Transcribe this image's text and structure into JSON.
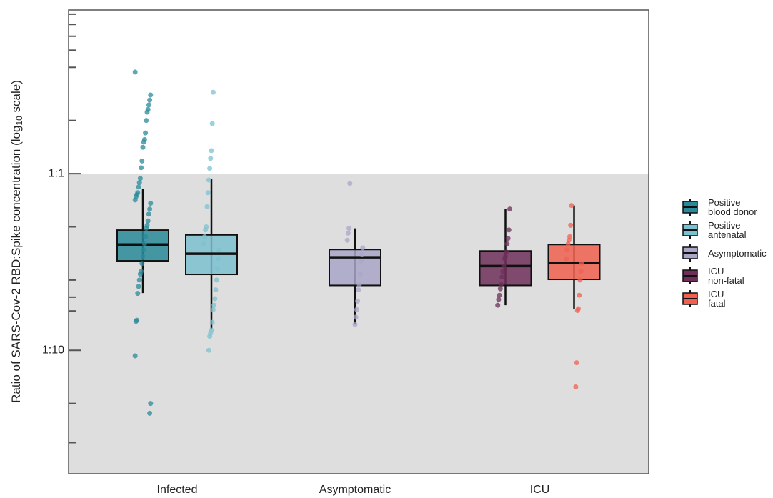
{
  "chart_data": {
    "type": "box",
    "ylabel": [
      "Ratio of SARS-Cov-2 RBD:Spike concentration (log",
      "10",
      " scale)"
    ],
    "categories": [
      "Infected",
      "Asymptomatic",
      "ICU"
    ],
    "log_scale": true,
    "ylim": [
      0.02,
      8.45
    ],
    "yticks": [
      {
        "value": 0.1,
        "label": "1:10"
      },
      {
        "value": 1,
        "label": "1:1"
      }
    ],
    "yminorticks": [
      0.03,
      0.05,
      0.167,
      0.2,
      0.25,
      0.5,
      2,
      4,
      5,
      6,
      7,
      8
    ],
    "shade_below": 1,
    "series": [
      {
        "name": "Positive\nblood donor",
        "color": "#2a8a99",
        "category": "Infected",
        "box": {
          "whislo": 0.211,
          "q1": 0.321,
          "med": 0.397,
          "q3": 0.479,
          "whishi": 0.822
        },
        "points": [
          3.76,
          2.79,
          2.61,
          2.45,
          2.31,
          2.23,
          2.0,
          1.7,
          1.56,
          1.51,
          1.41,
          1.18,
          1.08,
          0.94,
          0.89,
          0.84,
          0.78,
          0.76,
          0.74,
          0.71,
          0.68,
          0.63,
          0.59,
          0.54,
          0.51,
          0.49,
          0.44,
          0.4,
          0.37,
          0.34,
          0.31,
          0.28,
          0.27,
          0.25,
          0.23,
          0.21,
          0.148,
          0.146,
          0.093,
          0.05,
          0.044
        ]
      },
      {
        "name": "Positive\nantenatal",
        "color": "#7cc1cf",
        "category": "Infected",
        "box": {
          "whislo": 0.131,
          "q1": 0.269,
          "med": 0.352,
          "q3": 0.45,
          "whishi": 0.93
        },
        "points": [
          2.89,
          1.92,
          1.35,
          1.22,
          1.07,
          0.92,
          0.78,
          0.65,
          0.5,
          0.48,
          0.44,
          0.4,
          0.37,
          0.33,
          0.29,
          0.25,
          0.22,
          0.196,
          0.18,
          0.17,
          0.144,
          0.13,
          0.125,
          0.12,
          0.1
        ]
      },
      {
        "name": "Asymptomatic",
        "color": "#a9a6c8",
        "category": "Asymptomatic",
        "box": {
          "whislo": 0.14,
          "q1": 0.233,
          "med": 0.336,
          "q3": 0.372,
          "whishi": 0.49
        },
        "points": [
          0.88,
          0.49,
          0.46,
          0.42,
          0.38,
          0.35,
          0.32,
          0.27,
          0.236,
          0.22,
          0.19,
          0.17,
          0.154,
          0.14
        ]
      },
      {
        "name": "ICU\nnon-fatal",
        "color": "#6e3059",
        "category": "ICU",
        "box": {
          "whislo": 0.18,
          "q1": 0.233,
          "med": 0.3,
          "q3": 0.365,
          "whishi": 0.63
        },
        "points": [
          0.63,
          0.48,
          0.43,
          0.4,
          0.36,
          0.34,
          0.33,
          0.3,
          0.28,
          0.26,
          0.236,
          0.223,
          0.205,
          0.194,
          0.18
        ]
      },
      {
        "name": "ICU\nfatal",
        "color": "#f06050",
        "category": "ICU",
        "box": {
          "whislo": 0.172,
          "q1": 0.252,
          "med": 0.312,
          "q3": 0.397,
          "whishi": 0.66
        },
        "points": [
          0.66,
          0.51,
          0.44,
          0.42,
          0.4,
          0.37,
          0.33,
          0.31,
          0.28,
          0.25,
          0.205,
          0.172,
          0.168,
          0.085,
          0.062
        ]
      }
    ]
  }
}
